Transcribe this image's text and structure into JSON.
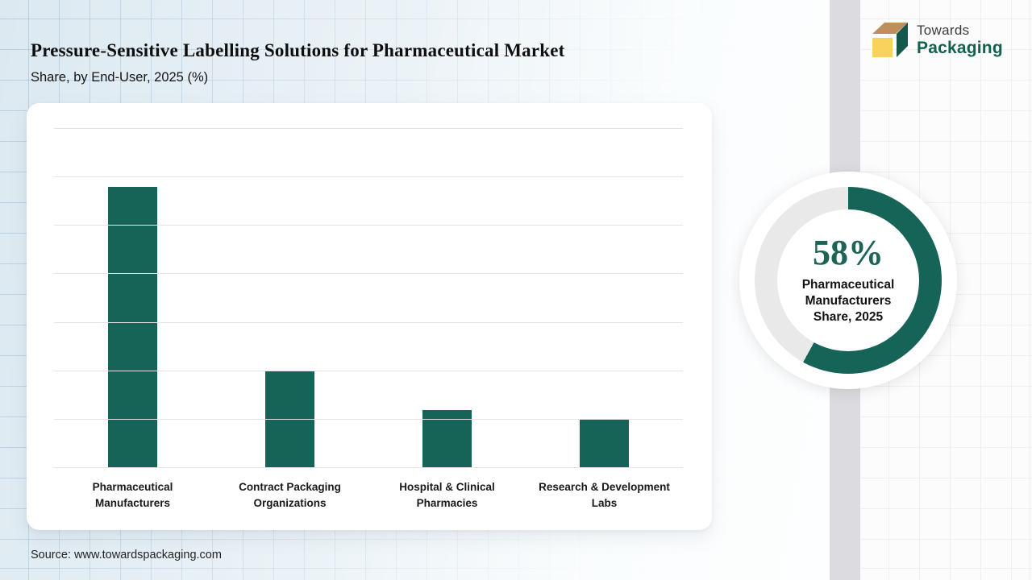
{
  "header": {
    "title": "Pressure-Sensitive Labelling Solutions for Pharmaceutical Market",
    "subtitle": "Share, by End-User, 2025 (%)"
  },
  "logo": {
    "name_top": "Towards",
    "name_bottom": "Packaging",
    "icon": "3d-box-icon",
    "colors": {
      "top_face": "#bf8e5b",
      "side_face": "#15584b",
      "front_face": "#f8d25c",
      "wordmark": "#15604f"
    }
  },
  "footer": {
    "source": "Source: www.towardspackaging.com"
  },
  "theme": {
    "accent_teal": "#166357",
    "donut_track": "#e9e9e9",
    "card_bg": "#ffffff",
    "gridline": "#e4e4e4"
  },
  "chart_data": [
    {
      "type": "bar",
      "title": "Pressure-Sensitive Labelling Solutions for Pharmaceutical Market Share, by End-User, 2025 (%)",
      "categories": [
        "Pharmaceutical Manufacturers",
        "Contract Packaging Organizations",
        "Hospital & Clinical Pharmacies",
        "Research & Development Labs"
      ],
      "values": [
        58,
        20,
        12,
        10
      ],
      "unit": "%",
      "xlabel": "",
      "ylabel": "",
      "ylim": [
        0,
        70
      ],
      "gridline_step": 10,
      "grid": true,
      "axis_tick_labels_visible": false,
      "legend": "none",
      "bar_color": "#166357"
    },
    {
      "type": "pie",
      "variant": "donut",
      "labels": [
        "Pharmaceutical Manufacturers",
        "Other"
      ],
      "values": [
        58,
        42
      ],
      "colors": [
        "#166357",
        "#e9e9e9"
      ],
      "start_angle_deg": 0,
      "direction": "clockwise",
      "center_text": "58%",
      "caption": "Pharmaceutical Manufacturers Share, 2025"
    }
  ]
}
